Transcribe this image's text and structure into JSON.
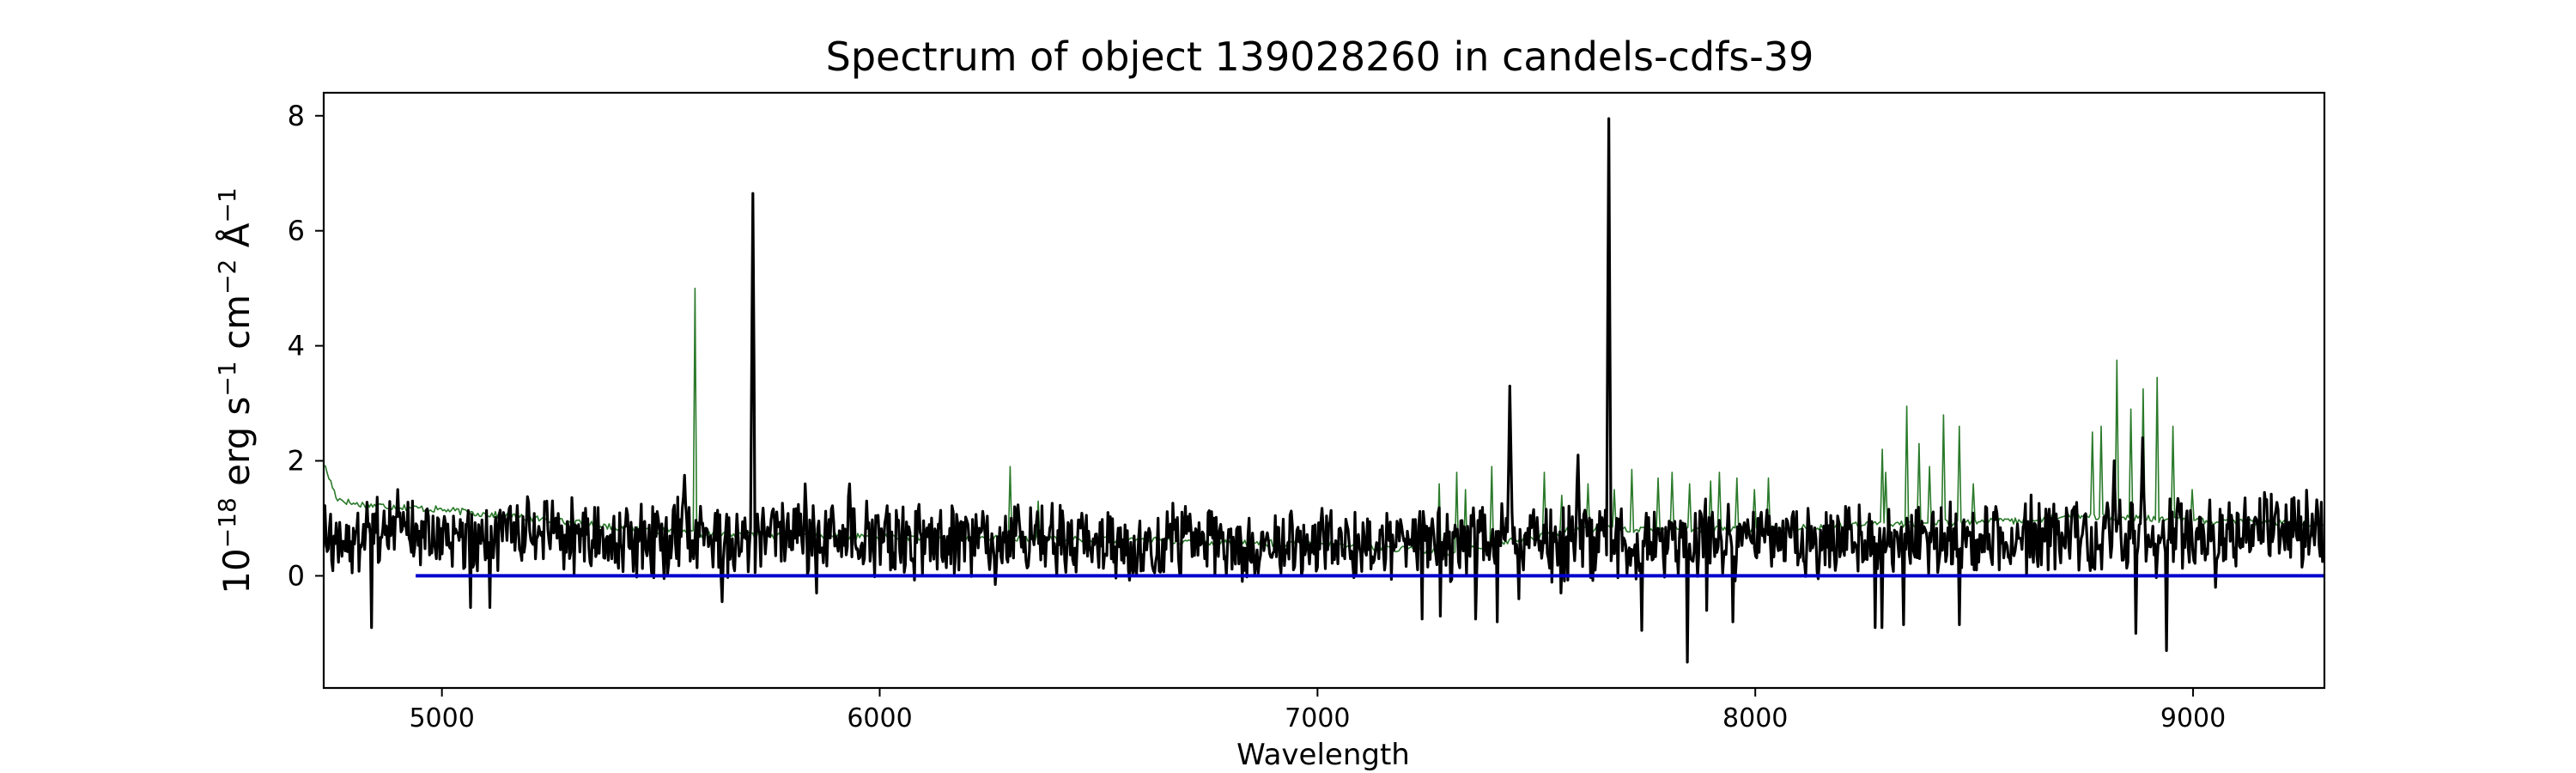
{
  "chart_data": {
    "type": "line",
    "title": "Spectrum of object 139028260 in candels-cdfs-39",
    "xlabel": "Wavelength",
    "ylabel": {
      "base": "10",
      "exp1": "−18",
      "part1": " erg s",
      "exp2": "−1",
      "part2": " cm",
      "exp3": "−2",
      "part3": " Å",
      "exp4": "−1"
    },
    "xlim": [
      4730,
      9300
    ],
    "ylim": [
      -1.95,
      8.4
    ],
    "xticks": [
      5000,
      6000,
      7000,
      8000,
      9000
    ],
    "yticks": [
      0,
      2,
      4,
      6,
      8
    ],
    "grid": false,
    "series": [
      {
        "role": "model",
        "color": "#2a7a2a",
        "width": 1.6,
        "base": [
          [
            4730,
            1.95
          ],
          [
            4760,
            1.35
          ],
          [
            4800,
            1.25
          ],
          [
            5000,
            1.15
          ],
          [
            5200,
            1.0
          ],
          [
            5400,
            0.85
          ],
          [
            5600,
            0.72
          ],
          [
            6000,
            0.68
          ],
          [
            6600,
            0.62
          ],
          [
            7000,
            0.55
          ],
          [
            7300,
            0.42
          ],
          [
            7600,
            0.82
          ],
          [
            8000,
            0.8
          ],
          [
            8300,
            0.9
          ],
          [
            8600,
            0.95
          ],
          [
            8750,
            1.05
          ],
          [
            9000,
            0.95
          ],
          [
            9300,
            0.9
          ]
        ],
        "peaks": [
          [
            5577,
            5.0
          ],
          [
            6300,
            1.9
          ],
          [
            6364,
            1.3
          ],
          [
            7280,
            1.6
          ],
          [
            7320,
            1.8
          ],
          [
            7340,
            1.5
          ],
          [
            7400,
            1.9
          ],
          [
            7520,
            1.8
          ],
          [
            7560,
            1.4
          ],
          [
            7620,
            1.6
          ],
          [
            7680,
            1.5
          ],
          [
            7720,
            1.85
          ],
          [
            7780,
            1.7
          ],
          [
            7810,
            1.8
          ],
          [
            7850,
            1.6
          ],
          [
            7900,
            1.65
          ],
          [
            7920,
            1.8
          ],
          [
            7960,
            1.7
          ],
          [
            8000,
            1.5
          ],
          [
            8030,
            1.7
          ],
          [
            8290,
            2.2
          ],
          [
            8300,
            1.8
          ],
          [
            8345,
            2.95
          ],
          [
            8375,
            2.3
          ],
          [
            8400,
            1.9
          ],
          [
            8430,
            2.8
          ],
          [
            8465,
            2.6
          ],
          [
            8500,
            1.6
          ],
          [
            8770,
            2.5
          ],
          [
            8790,
            2.6
          ],
          [
            8827,
            3.75
          ],
          [
            8860,
            2.9
          ],
          [
            8885,
            3.25
          ],
          [
            8920,
            3.45
          ],
          [
            8955,
            2.6
          ],
          [
            9000,
            1.5
          ]
        ]
      },
      {
        "role": "spectrum",
        "color": "#000000",
        "width": 3.2,
        "base": [
          [
            4730,
            0.65
          ],
          [
            5000,
            0.65
          ],
          [
            6000,
            0.62
          ],
          [
            7000,
            0.58
          ],
          [
            8000,
            0.62
          ],
          [
            9000,
            0.72
          ],
          [
            9300,
            0.8
          ]
        ],
        "peaks": [
          [
            5710,
            6.65
          ],
          [
            7440,
            3.3
          ],
          [
            7595,
            2.1
          ],
          [
            7665,
            7.95
          ],
          [
            4900,
            1.5
          ],
          [
            5555,
            1.75
          ],
          [
            5830,
            1.6
          ],
          [
            5930,
            1.6
          ],
          [
            8885,
            2.4
          ],
          [
            8820,
            2.0
          ]
        ],
        "dips": [
          [
            4840,
            -0.9
          ],
          [
            5065,
            -0.55
          ],
          [
            5110,
            -0.55
          ],
          [
            5640,
            -0.45
          ],
          [
            5855,
            -0.3
          ],
          [
            6265,
            -0.15
          ],
          [
            7240,
            -0.75
          ],
          [
            7280,
            -0.7
          ],
          [
            7360,
            -0.75
          ],
          [
            7410,
            -0.8
          ],
          [
            7460,
            -0.4
          ],
          [
            7555,
            -0.3
          ],
          [
            7740,
            -0.95
          ],
          [
            7845,
            -1.5
          ],
          [
            7890,
            -0.6
          ],
          [
            7950,
            -0.8
          ],
          [
            8275,
            -0.9
          ],
          [
            8290,
            -0.9
          ],
          [
            8340,
            -0.85
          ],
          [
            8465,
            -0.85
          ],
          [
            8870,
            -1.0
          ],
          [
            8940,
            -1.3
          ],
          [
            9050,
            -0.2
          ]
        ]
      },
      {
        "role": "zero",
        "color": "#0000cc",
        "width": 4,
        "x": [
          4940,
          9300
        ],
        "y": [
          0,
          0
        ]
      }
    ]
  }
}
